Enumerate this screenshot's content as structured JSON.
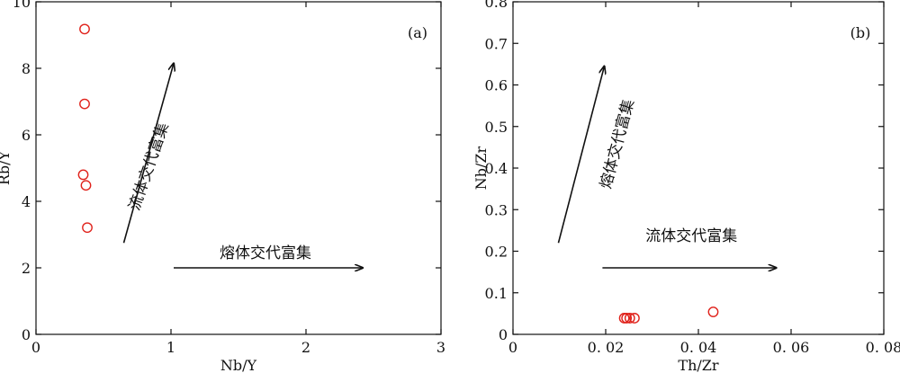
{
  "chart_data": [
    {
      "type": "scatter",
      "panel_label": "(a)",
      "xlabel": "Nb/Y",
      "ylabel": "Rb/Y",
      "xlim": [
        0,
        3
      ],
      "ylim": [
        0,
        10
      ],
      "xticks": [
        0,
        1,
        2,
        3
      ],
      "yticks": [
        0,
        2,
        4,
        6,
        8,
        10
      ],
      "points": [
        {
          "x": 0.36,
          "y": 9.18
        },
        {
          "x": 0.36,
          "y": 6.93
        },
        {
          "x": 0.35,
          "y": 4.8
        },
        {
          "x": 0.37,
          "y": 4.48
        },
        {
          "x": 0.38,
          "y": 3.21
        }
      ],
      "marker_color": "#e0221b",
      "arrows": [
        {
          "label": "流体交代富集",
          "from": [
            0.65,
            2.75
          ],
          "to": [
            1.02,
            8.15
          ],
          "label_at": [
            0.87,
            5.0
          ],
          "label_rotate": -71
        },
        {
          "label": "熔体交代富集",
          "from": [
            1.02,
            2.0
          ],
          "to": [
            2.42,
            2.0
          ],
          "label_at": [
            1.7,
            2.3
          ],
          "label_rotate": 0
        }
      ]
    },
    {
      "type": "scatter",
      "panel_label": "(b)",
      "xlabel": "Th/Zr",
      "ylabel": "Nb/Zr",
      "xlim": [
        0,
        0.08
      ],
      "ylim": [
        0,
        0.8
      ],
      "xticks": [
        0,
        0.02,
        0.04,
        0.06,
        0.08
      ],
      "xtick_labels": [
        "0",
        "0. 02",
        "0. 04",
        "0. 06",
        "0. 08"
      ],
      "yticks": [
        0,
        0.1,
        0.2,
        0.3,
        0.4,
        0.5,
        0.6,
        0.7,
        0.8
      ],
      "points": [
        {
          "x": 0.024,
          "y": 0.039
        },
        {
          "x": 0.0245,
          "y": 0.039
        },
        {
          "x": 0.0252,
          "y": 0.039
        },
        {
          "x": 0.0262,
          "y": 0.039
        },
        {
          "x": 0.0432,
          "y": 0.054
        }
      ],
      "marker_color": "#e0221b",
      "arrows": [
        {
          "label": "熔体交代富集",
          "from": [
            0.0098,
            0.22
          ],
          "to": [
            0.0197,
            0.645
          ],
          "label_at": [
            0.0235,
            0.455
          ],
          "label_rotate": -75
        },
        {
          "label": "流体交代富集",
          "from": [
            0.0193,
            0.16
          ],
          "to": [
            0.0568,
            0.16
          ],
          "label_at": [
            0.0385,
            0.225
          ],
          "label_rotate": 0
        }
      ]
    }
  ]
}
